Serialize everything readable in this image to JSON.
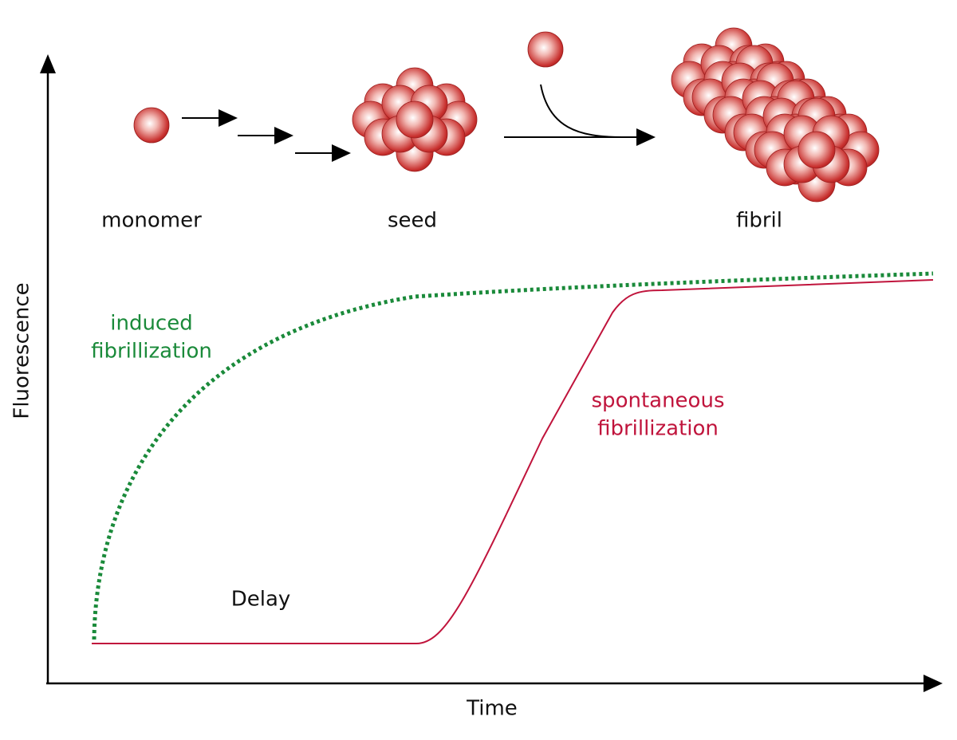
{
  "diagram": {
    "stages": [
      "monomer",
      "seed",
      "fibril"
    ],
    "curves": [
      {
        "name": "induced",
        "lines": [
          "induced",
          "fibrillization"
        ]
      },
      {
        "name": "spontaneous",
        "lines": [
          "spontaneous",
          "fibrillization"
        ]
      }
    ],
    "annotation": "Delay",
    "axes": {
      "x": "Time",
      "y": "Fluorescence"
    }
  }
}
